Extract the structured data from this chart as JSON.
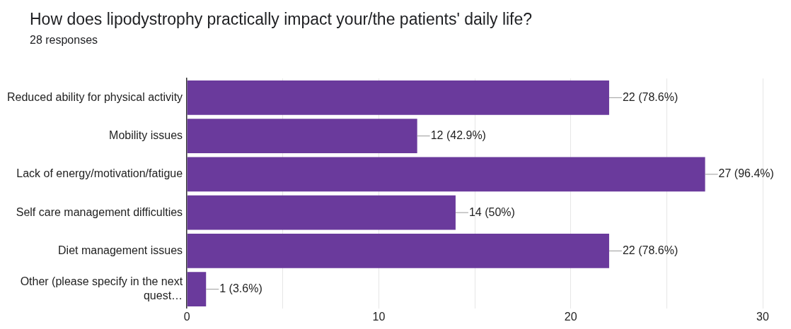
{
  "chart_data": {
    "type": "bar",
    "orientation": "horizontal",
    "title": "How does lipodystrophy practically impact your/the patients' daily life?",
    "subtitle": "28 responses",
    "categories": [
      "Reduced ability for physical activity",
      "Mobility issues",
      "Lack of energy/motivation/fatigue",
      "Self care management difficulties",
      "Diet management issues",
      "Other (please specify in the next quest…"
    ],
    "values": [
      22,
      12,
      27,
      14,
      22,
      1
    ],
    "value_labels": [
      "22 (78.6%)",
      "12 (42.9%)",
      "27 (96.4%)",
      "14 (50%)",
      "22 (78.6%)",
      "1 (3.6%)"
    ],
    "color": "#6a3a9c",
    "xlim": [
      0,
      30
    ],
    "xticks": [
      0,
      {
        "value": 5,
        "label": null
      },
      10,
      {
        "value": 15,
        "label": null
      },
      20,
      {
        "value": 25,
        "label": null
      },
      30
    ],
    "grid": "x",
    "legend": false
  }
}
